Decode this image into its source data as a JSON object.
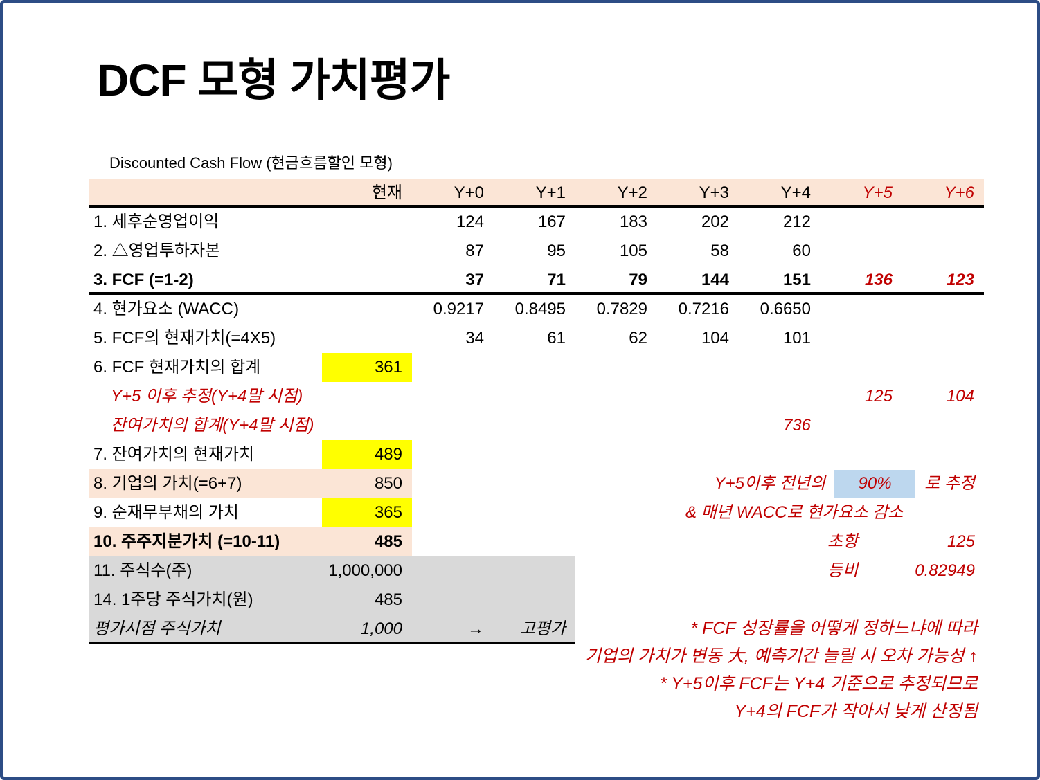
{
  "slide": {
    "title": "DCF 모형 가치평가",
    "subtitle": "Discounted Cash Flow (현금흐름할인 모형)"
  },
  "colors": {
    "border_blue": "#2d4d85",
    "header_peach": "#fbe5d6",
    "highlight_yellow": "#ffff00",
    "block_gray": "#d9d9d9",
    "cell_blue": "#bdd7ee",
    "accent_red": "#c00000"
  },
  "table": {
    "columns": [
      "현재",
      "Y+0",
      "Y+1",
      "Y+2",
      "Y+3",
      "Y+4",
      "Y+5",
      "Y+6"
    ],
    "forecast_start_index": 6,
    "rows": [
      {
        "label": "1. 세후순영업이익",
        "values": [
          "",
          "124",
          "167",
          "183",
          "202",
          "212",
          "",
          ""
        ],
        "style": "plain"
      },
      {
        "label": "2. △영업투하자본",
        "values": [
          "",
          "87",
          "95",
          "105",
          "58",
          "60",
          "",
          ""
        ],
        "style": "plain"
      },
      {
        "label": "3. FCF (=1-2)",
        "values": [
          "",
          "37",
          "71",
          "79",
          "144",
          "151",
          "136",
          "123"
        ],
        "style": "bold",
        "red_cols": [
          6,
          7
        ],
        "border": "thick"
      },
      {
        "label": "4. 현가요소 (WACC)",
        "values": [
          "",
          "0.9217",
          "0.8495",
          "0.7829",
          "0.7216",
          "0.6650",
          "",
          ""
        ],
        "style": "plain"
      },
      {
        "label": "5. FCF의 현재가치(=4X5)",
        "values": [
          "",
          "34",
          "61",
          "62",
          "104",
          "101",
          "",
          ""
        ],
        "style": "plain"
      },
      {
        "label": "6. FCF 현재가치의 합계",
        "values": [
          "361",
          "",
          "",
          "",
          "",
          "",
          "",
          ""
        ],
        "style": "plain",
        "yellow": [
          0
        ]
      },
      {
        "label": "Y+5 이후 추정(Y+4말 시점)",
        "values": [
          "",
          "",
          "",
          "",
          "",
          "",
          "125",
          "104"
        ],
        "style": "note"
      },
      {
        "label": "잔여가치의 합계(Y+4말 시점)",
        "values": [
          "",
          "",
          "",
          "",
          "",
          "736",
          "",
          ""
        ],
        "style": "note"
      },
      {
        "label": "7. 잔여가치의 현재가치",
        "values": [
          "489",
          "",
          "",
          "",
          "",
          "",
          "",
          ""
        ],
        "style": "plain",
        "yellow": [
          0
        ]
      },
      {
        "label": "8. 기업의 가치(=6+7)",
        "values": [
          "850",
          "",
          "",
          "",
          "",
          "",
          "",
          ""
        ],
        "style": "plain",
        "row_bg": "peach"
      },
      {
        "label": "9. 순재무부채의 가치",
        "values": [
          "365",
          "",
          "",
          "",
          "",
          "",
          "",
          ""
        ],
        "style": "plain",
        "yellow": [
          0
        ]
      },
      {
        "label": "10. 주주지분가치 (=10-11)",
        "values": [
          "485",
          "",
          "",
          "",
          "",
          "",
          "",
          ""
        ],
        "style": "bold",
        "row_bg": "peach"
      },
      {
        "label": "11. 주식수(주)",
        "values": [
          "1,000,000",
          "",
          "",
          "",
          "",
          "",
          "",
          ""
        ],
        "style": "plain",
        "row_bg": "gray"
      },
      {
        "label": "14. 1주당 주식가치(원)",
        "values": [
          "485",
          "",
          "",
          "",
          "",
          "",
          "",
          ""
        ],
        "style": "plain",
        "row_bg": "gray"
      },
      {
        "label": "평가시점 주식가치",
        "values": [
          "1,000",
          "→",
          "고평가",
          "",
          "",
          "",
          "",
          ""
        ],
        "style": "italic",
        "row_bg": "gray",
        "partial_line": true
      }
    ]
  },
  "annotations": {
    "estimate": {
      "prefix": "Y+5이후 전년의",
      "pct": "90%",
      "suffix": "로 추정"
    },
    "wacc_note": "& 매년 WACC로 현가요소 감소",
    "initial_term": {
      "label": "초항",
      "value": "125"
    },
    "common_ratio": {
      "label": "등비",
      "value": "0.82949"
    },
    "notes": [
      "* FCF 성장률을 어떻게 정하느냐에 따라",
      "기업의 가치가 변동 大, 예측기간 늘릴 시 오차 가능성 ↑",
      "* Y+5이후 FCF는 Y+4 기준으로 추정되므로",
      "Y+4의 FCF가 작아서 낮게 산정됨"
    ]
  }
}
